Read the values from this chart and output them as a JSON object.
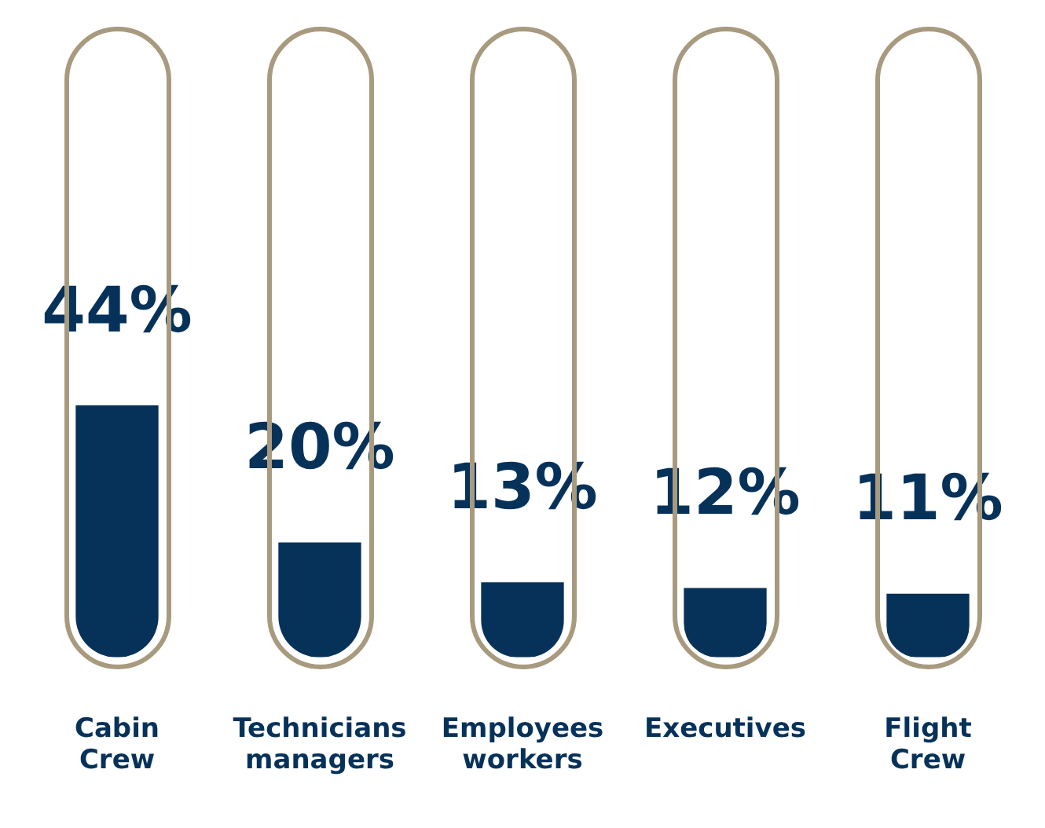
{
  "chart_data": {
    "type": "bar",
    "categories": [
      "Cabin Crew",
      "Technicians managers",
      "Employees workers",
      "Executives",
      "Flight Crew"
    ],
    "values": [
      44,
      20,
      13,
      12,
      11
    ],
    "value_labels": [
      "44%",
      "20%",
      "13%",
      "12%",
      "11%"
    ],
    "color": "#06325a"
  }
}
